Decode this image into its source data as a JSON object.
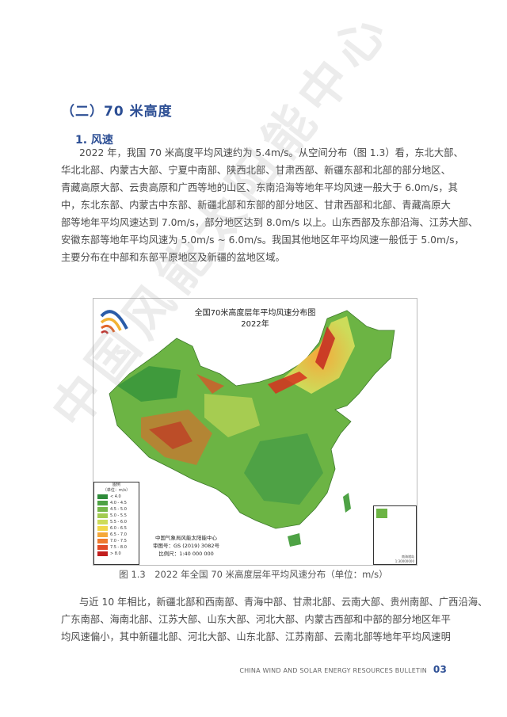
{
  "section_title": "（二）70 米高度",
  "subsection_title": "1. 风速",
  "paragraph1": [
    "2022 年，我国 70 米高度平均风速约为 5.4m/s。从空间分布（图 1.3）看，东北大部、",
    "华北北部、内蒙古大部、宁夏中南部、陕西北部、甘肃西部、新疆东部和北部的部分地区、",
    "青藏高原大部、云贵高原和广西等地的山区、东南沿海等地年平均风速一般大于 6.0m/s，其",
    "中，东北东部、内蒙古中东部、新疆北部和东部的部分地区、甘肃西部和北部、青藏高原大",
    "部等地年平均风速达到 7.0m/s，部分地区达到 8.0m/s 以上。山东西部及东部沿海、江苏大部、",
    "安徽东部等地年平均风速为 5.0m/s ~ 6.0m/s。我国其他地区年平均风速一般低于 5.0m/s，",
    "主要分布在中部和东部平原地区及新疆的盆地区域。"
  ],
  "map": {
    "title": "全国70米高度层年平均风速分布图",
    "year": "2022年",
    "legend_title": "图例",
    "legend_unit": "（单位：m/s）",
    "legend_items": [
      {
        "label": "< 4.0",
        "color": "#2e8b3a"
      },
      {
        "label": "4.0 - 4.5",
        "color": "#4ea245"
      },
      {
        "label": "4.5 - 5.0",
        "color": "#76b84a"
      },
      {
        "label": "5.0 - 5.5",
        "color": "#a3cc52"
      },
      {
        "label": "5.5 - 6.0",
        "color": "#cddc5a"
      },
      {
        "label": "6.0 - 6.5",
        "color": "#f1d84a"
      },
      {
        "label": "6.5 - 7.0",
        "color": "#f5a83a"
      },
      {
        "label": "7.0 - 7.5",
        "color": "#ef7a2e"
      },
      {
        "label": "7.5 - 8.0",
        "color": "#e24a26"
      },
      {
        "label": "> 8.0",
        "color": "#c21f1f"
      }
    ],
    "credits": [
      "中国气象局风能太阳能中心",
      "审图号：GS (2019) 3082号",
      "比例尺：1:40 000 000"
    ],
    "inset_label": "南海诸岛",
    "inset_scale": "1:30000000"
  },
  "caption": "图 1.3　2022 年全国 70 米高度层年平均风速分布（单位：m/s）",
  "paragraph2": [
    "与近 10 年相比，新疆北部和西南部、青海中部、甘肃北部、云南大部、贵州南部、广西沿海、",
    "广东南部、海南北部、江苏大部、山东大部、河北大部、内蒙古西部和中部的部分地区年平",
    "均风速偏小，其中新疆北部、河北大部、山东北部、江苏南部、云南北部等地年平均风速明"
  ],
  "footer": {
    "text": "CHINA WIND AND SOLAR ENERGY RESOURCES BULLETIN",
    "page": "03"
  },
  "watermark": "中国风能太阳能中心",
  "colors": {
    "heading": "#2c4e94"
  }
}
